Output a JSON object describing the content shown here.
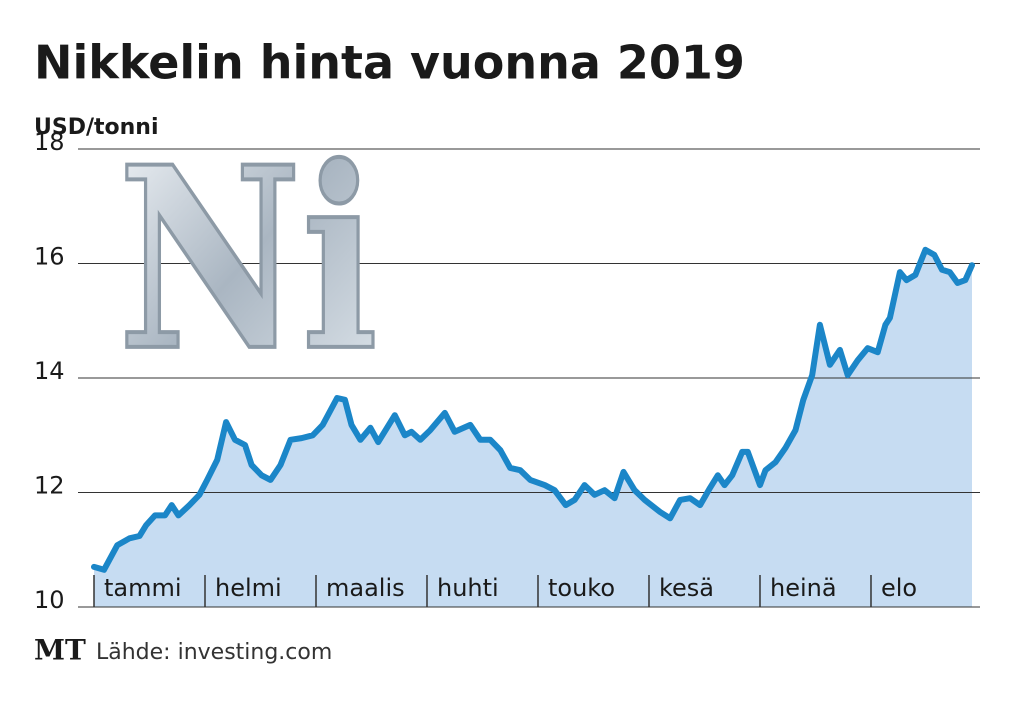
{
  "chart_data": {
    "type": "line",
    "title": "Nikkelin hinta vuonna 2019",
    "y_label": "USD/tonni",
    "image_text": "Ni",
    "logo": "MT",
    "source": "Lähde: investing.com",
    "xlim": [
      0,
      7.91
    ],
    "xticks": [
      {
        "value": 0,
        "label": "tammi"
      },
      {
        "value": 1,
        "label": "helmi"
      },
      {
        "value": 2,
        "label": "maalis"
      },
      {
        "value": 3,
        "label": "huhti"
      },
      {
        "value": 4,
        "label": "touko"
      },
      {
        "value": 5,
        "label": "kesä"
      },
      {
        "value": 6,
        "label": "heinä"
      },
      {
        "value": 7,
        "label": "elo"
      }
    ],
    "ylim": [
      10,
      18
    ],
    "yticks": [
      10,
      12,
      14,
      16,
      18
    ],
    "grid": true,
    "series": [
      {
        "color": "#1b86c8",
        "area_color": "#c6dcf2",
        "x": [
          0,
          0.09,
          0.21,
          0.32,
          0.41,
          0.47,
          0.55,
          0.64,
          0.7,
          0.76,
          0.86,
          0.95,
          1.02,
          1.11,
          1.19,
          1.27,
          1.36,
          1.42,
          1.51,
          1.59,
          1.68,
          1.77,
          1.87,
          1.97,
          2.06,
          2.19,
          2.26,
          2.32,
          2.4,
          2.49,
          2.56,
          2.71,
          2.8,
          2.86,
          2.94,
          3.03,
          3.16,
          3.25,
          3.39,
          3.48,
          3.57,
          3.66,
          3.75,
          3.84,
          3.93,
          4.06,
          4.15,
          4.25,
          4.33,
          4.42,
          4.51,
          4.6,
          4.69,
          4.77,
          4.87,
          4.96,
          5.1,
          5.19,
          5.28,
          5.37,
          5.46,
          5.55,
          5.62,
          5.68,
          5.75,
          5.84,
          5.89,
          6.0,
          6.05,
          6.14,
          6.23,
          6.32,
          6.39,
          6.47,
          6.54,
          6.63,
          6.72,
          6.79,
          6.88,
          6.97,
          7.06,
          7.13,
          7.17,
          7.26,
          7.32,
          7.4,
          7.49,
          7.57,
          7.64,
          7.71,
          7.78,
          7.85,
          7.91
        ],
        "values": [
          10.7,
          10.65,
          11.08,
          11.2,
          11.24,
          11.43,
          11.6,
          11.6,
          11.78,
          11.6,
          11.78,
          11.96,
          12.22,
          12.57,
          13.23,
          12.92,
          12.83,
          12.48,
          12.3,
          12.22,
          12.48,
          12.92,
          12.95,
          13.0,
          13.18,
          13.65,
          13.62,
          13.18,
          12.92,
          13.13,
          12.88,
          13.35,
          13.0,
          13.06,
          12.92,
          13.09,
          13.39,
          13.06,
          13.18,
          12.92,
          12.92,
          12.74,
          12.43,
          12.39,
          12.22,
          12.13,
          12.04,
          11.78,
          11.87,
          12.13,
          11.96,
          12.04,
          11.9,
          12.36,
          12.04,
          11.87,
          11.66,
          11.55,
          11.87,
          11.9,
          11.78,
          12.08,
          12.3,
          12.13,
          12.3,
          12.71,
          12.71,
          12.13,
          12.39,
          12.53,
          12.78,
          13.09,
          13.62,
          14.05,
          14.93,
          14.23,
          14.49,
          14.05,
          14.31,
          14.52,
          14.45,
          14.93,
          15.05,
          15.85,
          15.71,
          15.8,
          16.24,
          16.15,
          15.89,
          15.85,
          15.66,
          15.71,
          15.97
        ]
      }
    ]
  }
}
